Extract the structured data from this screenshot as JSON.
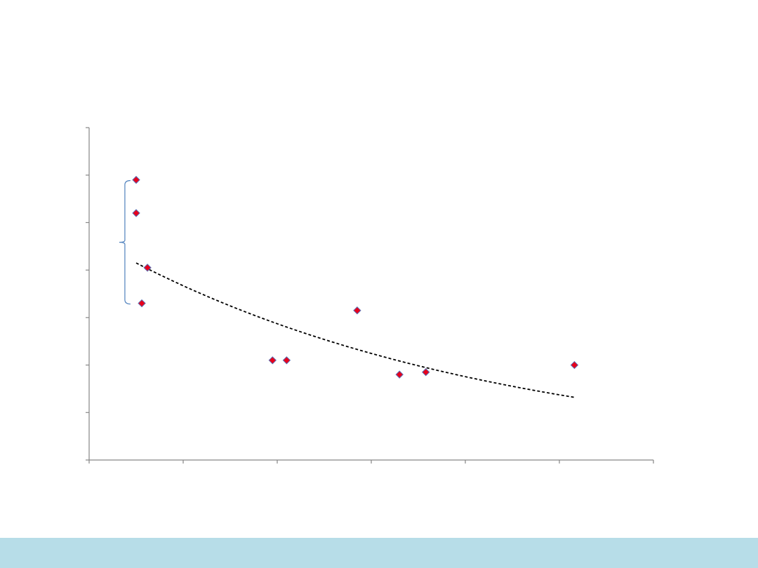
{
  "colors": {
    "axis": "#868686",
    "marker_fill": "#e8001c",
    "marker_stroke": "#5b6fb3",
    "trendline": "#000000",
    "bracket": "#4f81bd",
    "footer_band": "#b7dde8"
  },
  "chart_data": {
    "type": "scatter",
    "title": "",
    "xlabel": "",
    "ylabel": "",
    "xlim": [
      0,
      60
    ],
    "ylim": [
      0,
      70
    ],
    "x_ticks": [
      0,
      10,
      20,
      30,
      40,
      50,
      60
    ],
    "y_ticks": [
      0,
      10,
      20,
      30,
      40,
      50,
      60,
      70
    ],
    "grid": false,
    "legend": "none",
    "marker": "diamond",
    "series": [
      {
        "points": [
          {
            "x": 5.0,
            "y": 59.0
          },
          {
            "x": 5.0,
            "y": 52.0
          },
          {
            "x": 6.2,
            "y": 40.5
          },
          {
            "x": 5.6,
            "y": 33.0
          },
          {
            "x": 19.5,
            "y": 21.0
          },
          {
            "x": 21.0,
            "y": 21.0
          },
          {
            "x": 28.5,
            "y": 31.5
          },
          {
            "x": 33.0,
            "y": 18.0
          },
          {
            "x": 35.8,
            "y": 18.5
          },
          {
            "x": 51.6,
            "y": 20.0
          }
        ]
      }
    ],
    "trendline": {
      "type": "exponential",
      "x_range": [
        5.0,
        51.6
      ],
      "y_start": 41.5,
      "y_end": 13.2
    },
    "annotations": [
      {
        "type": "brace",
        "x": 3.8,
        "y_range": [
          33.0,
          59.0
        ]
      }
    ]
  }
}
